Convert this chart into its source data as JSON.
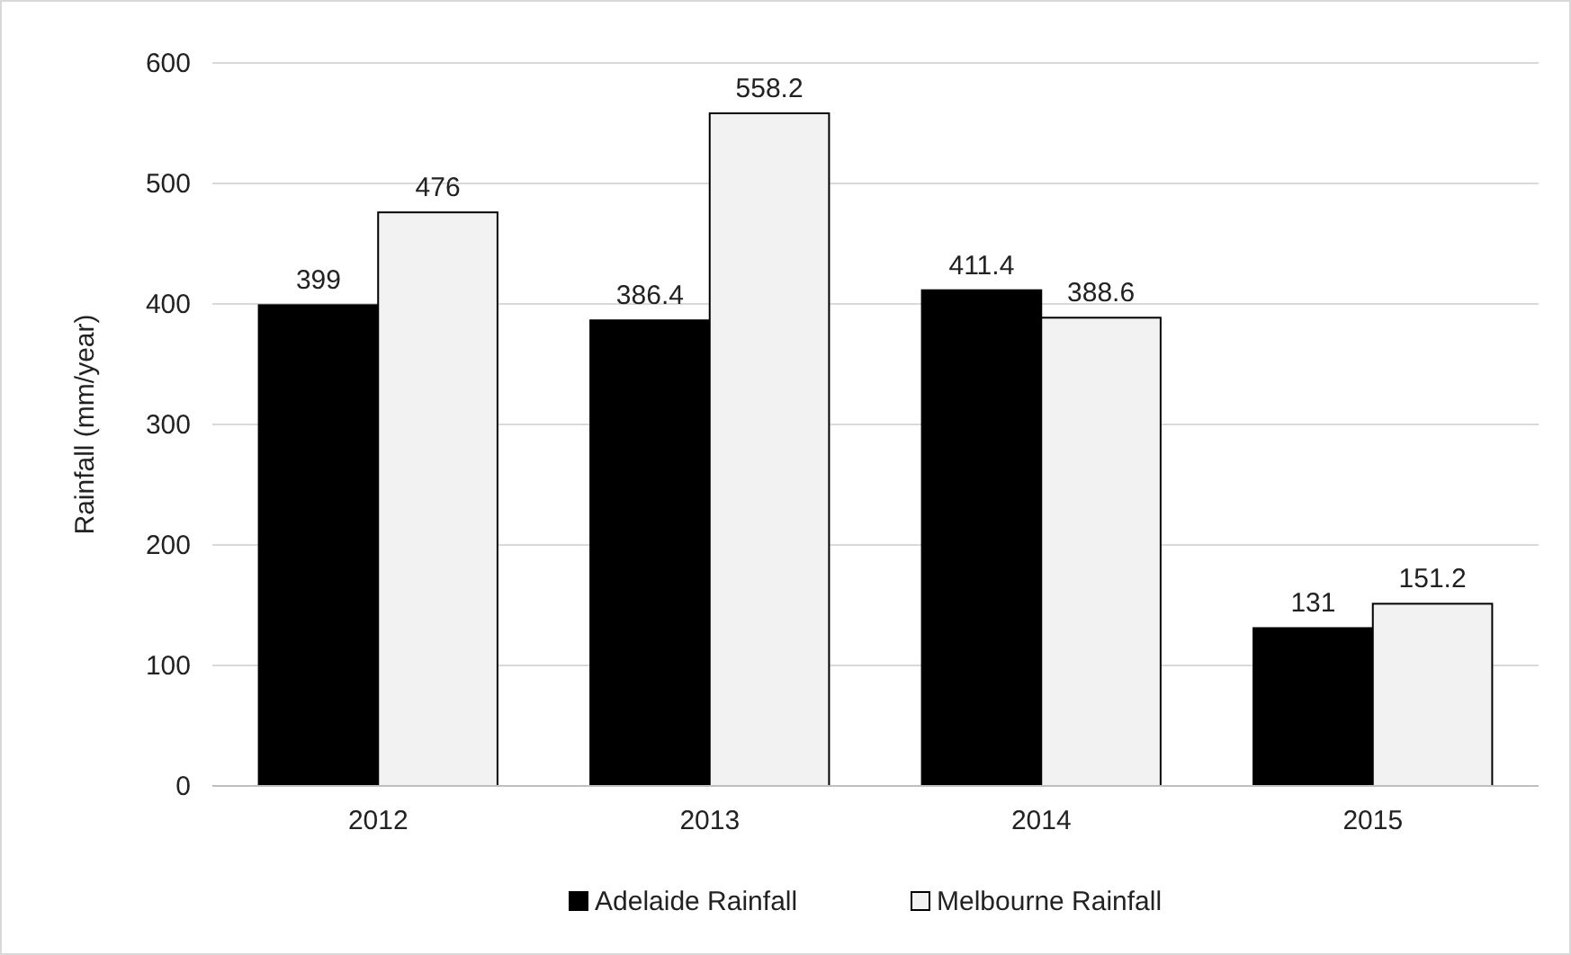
{
  "chart_data": {
    "type": "bar",
    "ylabel": "Rainfall (mm/year)",
    "categories": [
      "2012",
      "2013",
      "2014",
      "2015"
    ],
    "series": [
      {
        "name": "Adelaide Rainfall",
        "color": "#000000",
        "values": [
          399,
          386.4,
          411.4,
          131
        ]
      },
      {
        "name": "Melbourne Rainfall",
        "color": "#f2f2f2",
        "values": [
          476,
          558.2,
          388.6,
          151.2
        ]
      }
    ],
    "ylim": [
      0,
      600
    ],
    "yticks": [
      0,
      100,
      200,
      300,
      400,
      500,
      600
    ],
    "grid": "y",
    "legend": "bottom",
    "data_labels": true
  }
}
